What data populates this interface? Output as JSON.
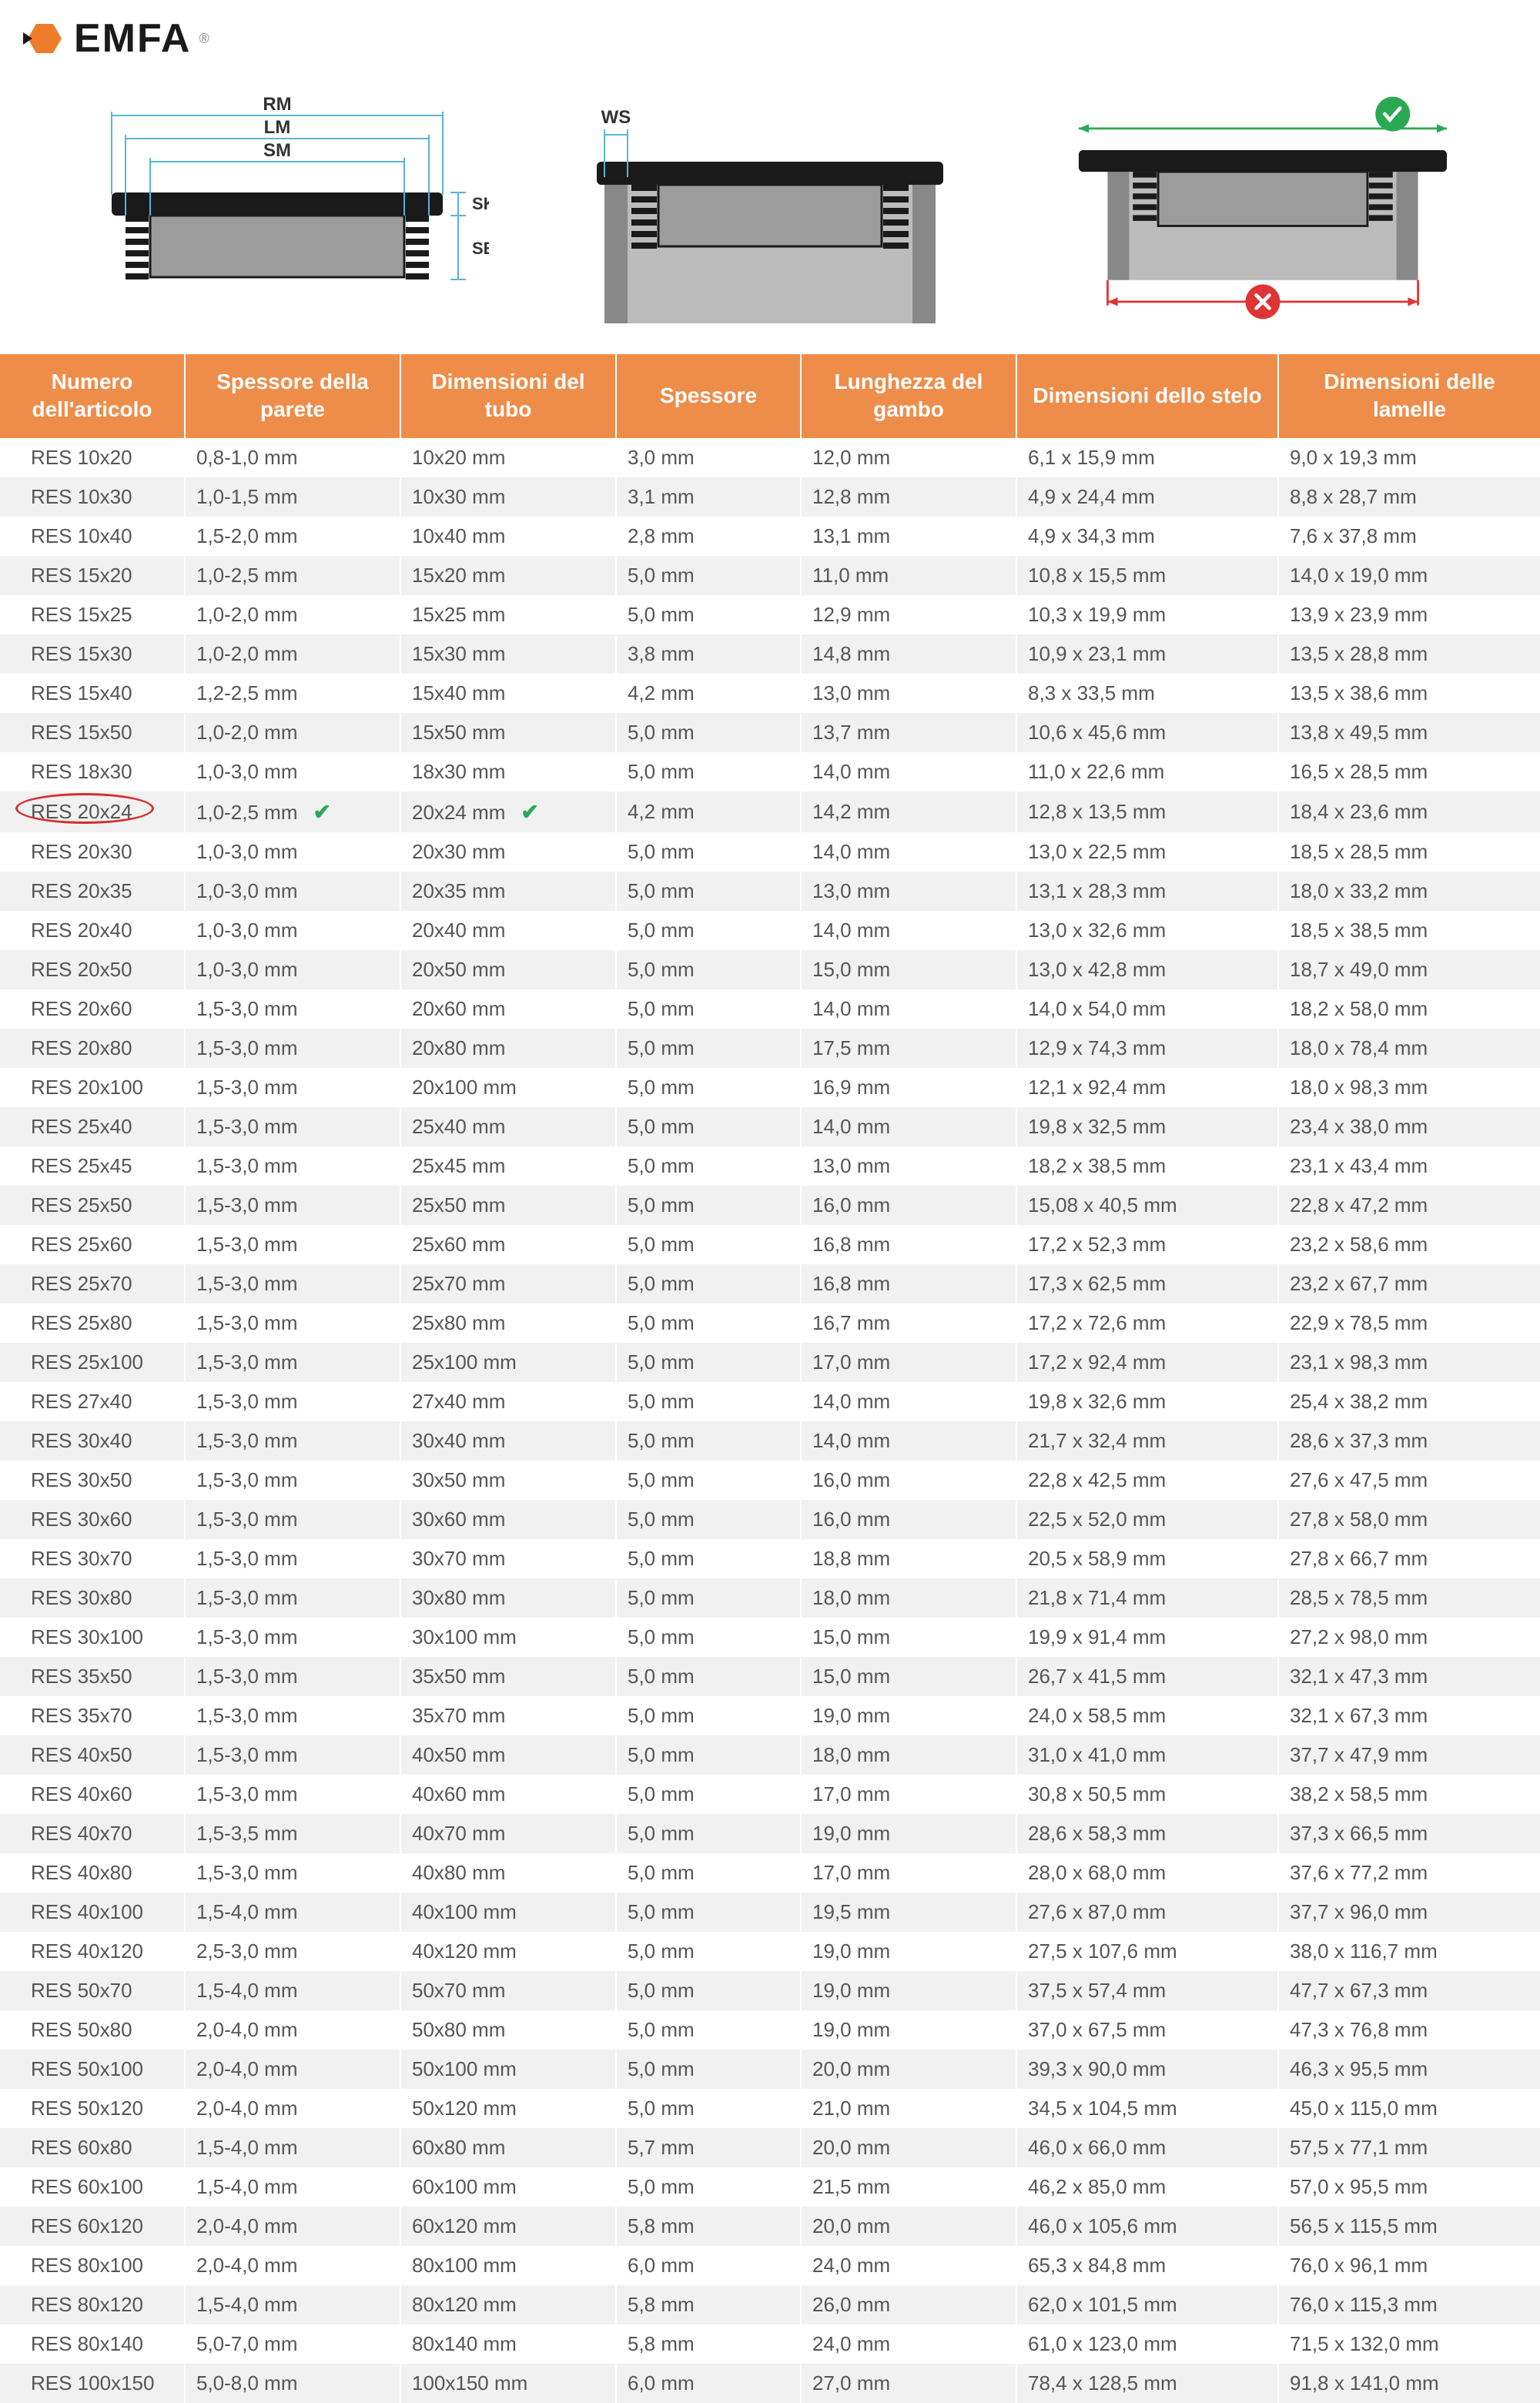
{
  "brand": {
    "name": "EMFA",
    "reg": "®"
  },
  "diagram_labels": {
    "rm": "RM",
    "lm": "LM",
    "sm": "SM",
    "sk": "SK",
    "se": "SE",
    "ws": "WS"
  },
  "colors": {
    "header_bg": "#ee8d4a",
    "header_text": "#ffffff",
    "row_even": "#f1f1f1",
    "row_odd": "#ffffff",
    "highlight": "#d42f2f",
    "check_green": "#2aa952",
    "dim_blue": "#5ab4d6",
    "diagram_black": "#1a1a1a",
    "diagram_grey": "#9c9c9c",
    "cross_red": "#e03434"
  },
  "highlighted_row_index": 9,
  "table": {
    "columns": [
      "Numero dell'articolo",
      "Spessore della parete",
      "Dimensioni del tubo",
      "Spessore",
      "Lunghezza del gambo",
      "Dimensioni dello stelo",
      "Dimensioni delle lamelle"
    ],
    "rows": [
      [
        "RES 10x20",
        "0,8-1,0 mm",
        "10x20 mm",
        "3,0 mm",
        "12,0 mm",
        "6,1 x 15,9 mm",
        "9,0 x 19,3 mm"
      ],
      [
        "RES 10x30",
        "1,0-1,5 mm",
        "10x30 mm",
        "3,1 mm",
        "12,8 mm",
        "4,9 x 24,4 mm",
        "8,8 x 28,7 mm"
      ],
      [
        "RES 10x40",
        "1,5-2,0 mm",
        "10x40 mm",
        "2,8 mm",
        "13,1 mm",
        "4,9 x 34,3 mm",
        "7,6 x 37,8 mm"
      ],
      [
        "RES 15x20",
        "1,0-2,5 mm",
        "15x20 mm",
        "5,0 mm",
        "11,0 mm",
        "10,8 x 15,5 mm",
        "14,0 x 19,0 mm"
      ],
      [
        "RES 15x25",
        "1,0-2,0 mm",
        "15x25 mm",
        "5,0 mm",
        "12,9 mm",
        "10,3 x 19,9 mm",
        "13,9 x 23,9 mm"
      ],
      [
        "RES 15x30",
        "1,0-2,0 mm",
        "15x30 mm",
        "3,8 mm",
        "14,8 mm",
        "10,9 x 23,1 mm",
        "13,5 x 28,8 mm"
      ],
      [
        "RES 15x40",
        "1,2-2,5 mm",
        "15x40 mm",
        "4,2 mm",
        "13,0 mm",
        "8,3 x 33,5 mm",
        "13,5 x 38,6 mm"
      ],
      [
        "RES 15x50",
        "1,0-2,0 mm",
        "15x50 mm",
        "5,0 mm",
        "13,7 mm",
        "10,6 x 45,6 mm",
        "13,8 x 49,5 mm"
      ],
      [
        "RES 18x30",
        "1,0-3,0 mm",
        "18x30 mm",
        "5,0 mm",
        "14,0 mm",
        "11,0 x 22,6 mm",
        "16,5 x 28,5 mm"
      ],
      [
        "RES 20x24",
        "1,0-2,5 mm",
        "20x24 mm",
        "4,2 mm",
        "14,2 mm",
        "12,8 x 13,5 mm",
        "18,4 x 23,6 mm"
      ],
      [
        "RES 20x30",
        "1,0-3,0 mm",
        "20x30 mm",
        "5,0 mm",
        "14,0 mm",
        "13,0 x 22,5 mm",
        "18,5 x 28,5 mm"
      ],
      [
        "RES 20x35",
        "1,0-3,0 mm",
        "20x35 mm",
        "5,0 mm",
        "13,0 mm",
        "13,1 x 28,3 mm",
        "18,0 x 33,2 mm"
      ],
      [
        "RES 20x40",
        "1,0-3,0 mm",
        "20x40 mm",
        "5,0 mm",
        "14,0 mm",
        "13,0 x 32,6 mm",
        "18,5 x 38,5 mm"
      ],
      [
        "RES 20x50",
        "1,0-3,0 mm",
        "20x50 mm",
        "5,0 mm",
        "15,0 mm",
        "13,0 x 42,8 mm",
        "18,7 x 49,0 mm"
      ],
      [
        "RES 20x60",
        "1,5-3,0 mm",
        "20x60 mm",
        "5,0 mm",
        "14,0 mm",
        "14,0 x 54,0 mm",
        "18,2 x 58,0 mm"
      ],
      [
        "RES 20x80",
        "1,5-3,0 mm",
        "20x80 mm",
        "5,0 mm",
        "17,5 mm",
        "12,9 x 74,3 mm",
        "18,0 x 78,4 mm"
      ],
      [
        "RES 20x100",
        "1,5-3,0 mm",
        "20x100 mm",
        "5,0 mm",
        "16,9 mm",
        "12,1 x 92,4 mm",
        "18,0 x 98,3 mm"
      ],
      [
        "RES 25x40",
        "1,5-3,0 mm",
        "25x40 mm",
        "5,0 mm",
        "14,0 mm",
        "19,8 x 32,5 mm",
        "23,4 x 38,0 mm"
      ],
      [
        "RES 25x45",
        "1,5-3,0 mm",
        "25x45 mm",
        "5,0 mm",
        "13,0 mm",
        "18,2 x 38,5 mm",
        "23,1 x 43,4 mm"
      ],
      [
        "RES 25x50",
        "1,5-3,0 mm",
        "25x50 mm",
        "5,0 mm",
        "16,0 mm",
        "15,08 x 40,5 mm",
        "22,8 x 47,2 mm"
      ],
      [
        "RES 25x60",
        "1,5-3,0 mm",
        "25x60 mm",
        "5,0 mm",
        "16,8 mm",
        "17,2 x 52,3 mm",
        "23,2 x 58,6 mm"
      ],
      [
        "RES 25x70",
        "1,5-3,0 mm",
        "25x70 mm",
        "5,0 mm",
        "16,8 mm",
        "17,3 x 62,5 mm",
        "23,2 x 67,7 mm"
      ],
      [
        "RES 25x80",
        "1,5-3,0 mm",
        "25x80 mm",
        "5,0 mm",
        "16,7 mm",
        "17,2 x 72,6 mm",
        "22,9 x 78,5 mm"
      ],
      [
        "RES 25x100",
        "1,5-3,0 mm",
        "25x100 mm",
        "5,0 mm",
        "17,0 mm",
        "17,2 x 92,4 mm",
        "23,1 x 98,3 mm"
      ],
      [
        "RES 27x40",
        "1,5-3,0 mm",
        "27x40 mm",
        "5,0 mm",
        "14,0 mm",
        "19,8 x 32,6 mm",
        "25,4 x 38,2 mm"
      ],
      [
        "RES 30x40",
        "1,5-3,0 mm",
        "30x40 mm",
        "5,0 mm",
        "14,0 mm",
        "21,7 x 32,4 mm",
        "28,6 x 37,3 mm"
      ],
      [
        "RES 30x50",
        "1,5-3,0 mm",
        "30x50 mm",
        "5,0 mm",
        "16,0 mm",
        "22,8 x 42,5 mm",
        "27,6 x 47,5 mm"
      ],
      [
        "RES 30x60",
        "1,5-3,0 mm",
        "30x60 mm",
        "5,0 mm",
        "16,0 mm",
        "22,5 x 52,0 mm",
        "27,8 x 58,0 mm"
      ],
      [
        "RES 30x70",
        "1,5-3,0 mm",
        "30x70 mm",
        "5,0 mm",
        "18,8 mm",
        "20,5 x 58,9 mm",
        "27,8 x 66,7 mm"
      ],
      [
        "RES 30x80",
        "1,5-3,0 mm",
        "30x80 mm",
        "5,0 mm",
        "18,0 mm",
        "21,8 x 71,4 mm",
        "28,5 x 78,5 mm"
      ],
      [
        "RES 30x100",
        "1,5-3,0 mm",
        "30x100 mm",
        "5,0 mm",
        "15,0 mm",
        "19,9 x 91,4 mm",
        "27,2 x 98,0 mm"
      ],
      [
        "RES 35x50",
        "1,5-3,0 mm",
        "35x50 mm",
        "5,0 mm",
        "15,0 mm",
        "26,7 x 41,5 mm",
        "32,1 x 47,3 mm"
      ],
      [
        "RES 35x70",
        "1,5-3,0 mm",
        "35x70 mm",
        "5,0 mm",
        "19,0 mm",
        "24,0 x 58,5 mm",
        "32,1 x 67,3 mm"
      ],
      [
        "RES 40x50",
        "1,5-3,0 mm",
        "40x50 mm",
        "5,0 mm",
        "18,0 mm",
        "31,0 x 41,0 mm",
        "37,7 x 47,9 mm"
      ],
      [
        "RES 40x60",
        "1,5-3,0 mm",
        "40x60 mm",
        "5,0 mm",
        "17,0 mm",
        "30,8 x 50,5 mm",
        "38,2 x 58,5 mm"
      ],
      [
        "RES 40x70",
        "1,5-3,5 mm",
        "40x70 mm",
        "5,0 mm",
        "19,0 mm",
        "28,6 x 58,3 mm",
        "37,3 x 66,5 mm"
      ],
      [
        "RES 40x80",
        "1,5-3,0 mm",
        "40x80 mm",
        "5,0 mm",
        "17,0 mm",
        "28,0 x 68,0 mm",
        "37,6 x 77,2 mm"
      ],
      [
        "RES 40x100",
        "1,5-4,0 mm",
        "40x100 mm",
        "5,0 mm",
        "19,5 mm",
        "27,6 x 87,0 mm",
        "37,7 x 96,0 mm"
      ],
      [
        "RES 40x120",
        "2,5-3,0 mm",
        "40x120 mm",
        "5,0 mm",
        "19,0 mm",
        "27,5 x 107,6 mm",
        "38,0 x 116,7 mm"
      ],
      [
        "RES 50x70",
        "1,5-4,0 mm",
        "50x70 mm",
        "5,0 mm",
        "19,0 mm",
        "37,5 x 57,4 mm",
        "47,7 x 67,3 mm"
      ],
      [
        "RES 50x80",
        "2,0-4,0 mm",
        "50x80 mm",
        "5,0 mm",
        "19,0 mm",
        "37,0 x 67,5 mm",
        "47,3 x 76,8 mm"
      ],
      [
        "RES 50x100",
        "2,0-4,0 mm",
        "50x100 mm",
        "5,0 mm",
        "20,0 mm",
        "39,3 x 90,0 mm",
        "46,3 x 95,5 mm"
      ],
      [
        "RES 50x120",
        "2,0-4,0 mm",
        "50x120 mm",
        "5,0 mm",
        "21,0 mm",
        "34,5 x 104,5 mm",
        "45,0 x 115,0 mm"
      ],
      [
        "RES 60x80",
        "1,5-4,0 mm",
        "60x80 mm",
        "5,7 mm",
        "20,0 mm",
        "46,0 x 66,0 mm",
        "57,5 x 77,1 mm"
      ],
      [
        "RES 60x100",
        "1,5-4,0 mm",
        "60x100 mm",
        "5,0 mm",
        "21,5 mm",
        "46,2 x 85,0 mm",
        "57,0 x 95,5 mm"
      ],
      [
        "RES 60x120",
        "2,0-4,0 mm",
        "60x120 mm",
        "5,8 mm",
        "20,0 mm",
        "46,0 x 105,6 mm",
        "56,5 x 115,5 mm"
      ],
      [
        "RES 80x100",
        "2,0-4,0 mm",
        "80x100 mm",
        "6,0 mm",
        "24,0 mm",
        "65,3 x 84,8 mm",
        "76,0 x 96,1 mm"
      ],
      [
        "RES 80x120",
        "1,5-4,0 mm",
        "80x120 mm",
        "5,8 mm",
        "26,0 mm",
        "62,0 x 101,5 mm",
        "76,0 x 115,3 mm"
      ],
      [
        "RES 80x140",
        "5,0-7,0 mm",
        "80x140 mm",
        "5,8 mm",
        "24,0 mm",
        "61,0 x 123,0 mm",
        "71,5 x 132,0 mm"
      ],
      [
        "RES 100x150",
        "5,0-8,0 mm",
        "100x150 mm",
        "6,0 mm",
        "27,0 mm",
        "78,4 x 128,5 mm",
        "91,8 x 141,0 mm"
      ]
    ]
  }
}
